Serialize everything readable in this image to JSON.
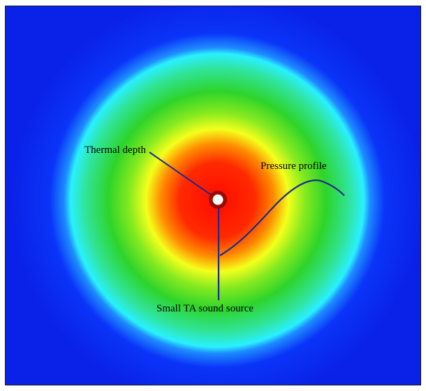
{
  "diagram": {
    "labels": {
      "thermal_depth": "Thermal depth",
      "pressure_profile": "Pressure profile",
      "source": "Small TA sound source"
    },
    "colors": {
      "background": "#0a24f0",
      "ring_cyan": "#22eaff",
      "ring_green": "#3cd22a",
      "ring_yellow": "#f6ff20",
      "core_orange": "#ff8a00",
      "core_red": "#ff1a00",
      "source_ring": "#9b0a00",
      "source_center": "#ffffff",
      "curve": "#1a2a8c"
    }
  }
}
